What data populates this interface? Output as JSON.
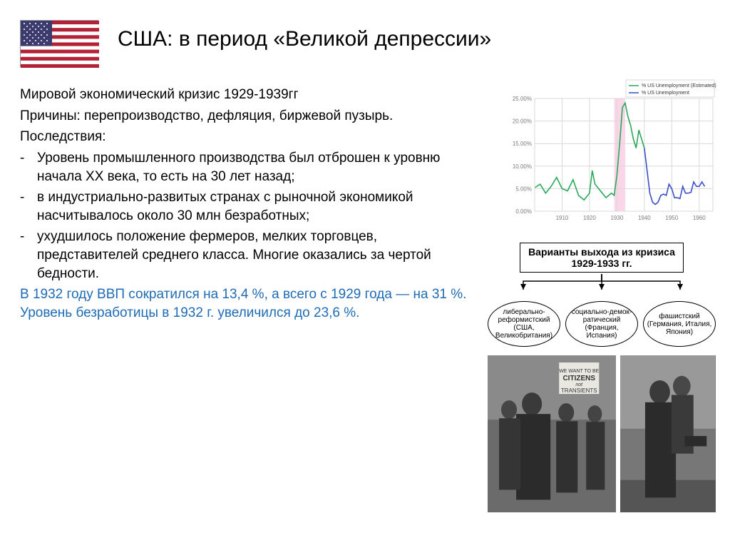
{
  "title": "США: в период «Великой депрессии»",
  "subtitle": "Мировой экономический кризис 1929-1939гг",
  "causes": "Причины: перепроизводство, дефляция, биржевой пузырь.",
  "consequences_label": "Последствия:",
  "bullets": [
    "Уровень промышленного производства был отброшен к уровню начала XX века, то есть на 30 лет назад;",
    "в индустриально-развитых странах с рыночной экономикой насчитывалось около 30 млн безработных;",
    " ухудшилось положение фермеров, мелких торговцев, представителей среднего класса. Многие оказались за чертой бедности."
  ],
  "blue_text": "В 1932 году ВВП сократился на 13,4 %, а всего с 1929 года — на 31 %. Уровень безработицы в 1932 г. увеличился до 23,6 %.",
  "chart": {
    "type": "line",
    "legend": [
      "% US Unemployment (Estimated)",
      "% US Unemployment"
    ],
    "xlim": [
      1900,
      1965
    ],
    "xticks": [
      1910,
      1920,
      1930,
      1940,
      1950,
      1960
    ],
    "ylim": [
      0,
      25
    ],
    "yticks": [
      "0.00%",
      "5.00%",
      "10.00%",
      "15.00%",
      "20.00%",
      "25.00%"
    ],
    "ytick_values": [
      0,
      5,
      10,
      15,
      20,
      25
    ],
    "highlight_band": {
      "from": 1929,
      "to": 1933,
      "color": "#fbd5e8"
    },
    "series": [
      {
        "name": "estimated",
        "color": "#2aa85a",
        "points": [
          [
            1900,
            5.2
          ],
          [
            1902,
            6
          ],
          [
            1904,
            4
          ],
          [
            1906,
            5.5
          ],
          [
            1908,
            7.5
          ],
          [
            1910,
            5
          ],
          [
            1912,
            4.5
          ],
          [
            1914,
            7
          ],
          [
            1916,
            3.5
          ],
          [
            1918,
            2.5
          ],
          [
            1920,
            4
          ],
          [
            1921,
            9
          ],
          [
            1922,
            6
          ],
          [
            1924,
            4.5
          ],
          [
            1926,
            3
          ],
          [
            1928,
            4
          ],
          [
            1929,
            3.5
          ],
          [
            1930,
            8
          ],
          [
            1931,
            15
          ],
          [
            1932,
            23
          ],
          [
            1933,
            24
          ],
          [
            1934,
            21
          ],
          [
            1935,
            19
          ],
          [
            1936,
            16
          ],
          [
            1937,
            14
          ],
          [
            1938,
            18
          ],
          [
            1939,
            16
          ],
          [
            1940,
            14
          ]
        ]
      },
      {
        "name": "actual",
        "color": "#3b4ec9",
        "points": [
          [
            1940,
            14
          ],
          [
            1941,
            9
          ],
          [
            1942,
            4
          ],
          [
            1943,
            2
          ],
          [
            1944,
            1.5
          ],
          [
            1945,
            2
          ],
          [
            1946,
            3.5
          ],
          [
            1947,
            3.8
          ],
          [
            1948,
            3.5
          ],
          [
            1949,
            6
          ],
          [
            1950,
            5
          ],
          [
            1951,
            3
          ],
          [
            1952,
            3
          ],
          [
            1953,
            2.8
          ],
          [
            1954,
            5.5
          ],
          [
            1955,
            4
          ],
          [
            1956,
            4
          ],
          [
            1957,
            4.2
          ],
          [
            1958,
            6.5
          ],
          [
            1959,
            5.5
          ],
          [
            1960,
            5.5
          ],
          [
            1961,
            6.5
          ],
          [
            1962,
            5.5
          ]
        ]
      }
    ],
    "grid_color": "#d9d9d9",
    "axis_color": "#7a7a7a",
    "label_fontsize": 8,
    "legend_fontsize": 7,
    "background_color": "#ffffff"
  },
  "diagram": {
    "root": "Варианты выхода из кризиса 1929-1933 гг.",
    "leaves": [
      "либерально-реформистский (США, Великобритания)",
      "социально-демок-ратический (Франция, Испания)",
      "фашистский (Германия, Италия, Япония)"
    ]
  },
  "photos": {
    "photo1_alt": "Demonstration photo: crowd with sign",
    "photo2_alt": "Bonnie and Clyde style photo"
  },
  "flag": {
    "stripe_red": "#b22234",
    "stripe_white": "#ffffff",
    "canton_blue": "#3c3b6e"
  }
}
